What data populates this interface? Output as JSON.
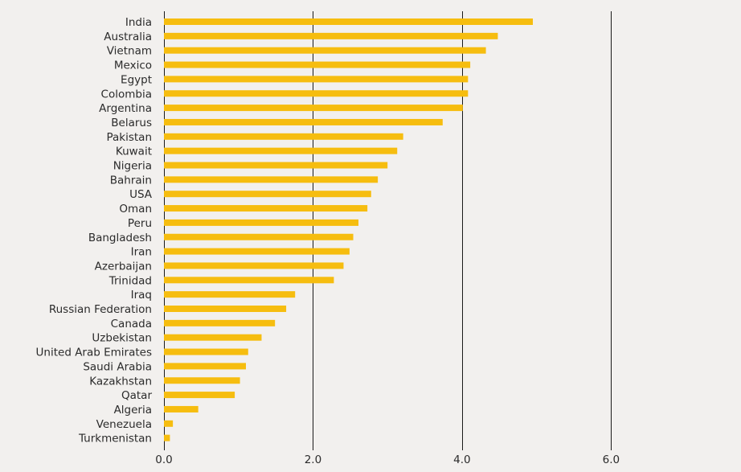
{
  "chart_data": {
    "type": "bar",
    "orientation": "horizontal",
    "categories": [
      "India",
      "Australia",
      "Vietnam",
      "Mexico",
      "Egypt",
      "Colombia",
      "Argentina",
      "Belarus",
      "Pakistan",
      "Kuwait",
      "Nigeria",
      "Bahrain",
      "USA",
      "Oman",
      "Peru",
      "Bangladesh",
      "Iran",
      "Azerbaijan",
      "Trinidad",
      "Iraq",
      "Russian Federation",
      "Canada",
      "Uzbekistan",
      "United Arab Emirates",
      "Saudi Arabia",
      "Kazakhstan",
      "Qatar",
      "Algeria",
      "Venezuela",
      "Turkmenistan"
    ],
    "values": [
      4.95,
      4.48,
      4.32,
      4.11,
      4.08,
      4.08,
      4.01,
      3.74,
      3.21,
      3.13,
      3.0,
      2.87,
      2.78,
      2.73,
      2.61,
      2.54,
      2.49,
      2.41,
      2.28,
      1.76,
      1.64,
      1.49,
      1.31,
      1.13,
      1.1,
      1.02,
      0.95,
      0.46,
      0.12,
      0.08
    ],
    "xlim": [
      0,
      7.7
    ],
    "xticks": [
      0,
      2,
      4,
      6
    ],
    "xtick_labels": [
      "0.0",
      "2.0",
      "4.0",
      "6.0"
    ],
    "grid": "vertical",
    "colors": {
      "bar": "#f6bd0f",
      "background": "#f2f0ee",
      "gridline": "#1a1a1a"
    }
  }
}
